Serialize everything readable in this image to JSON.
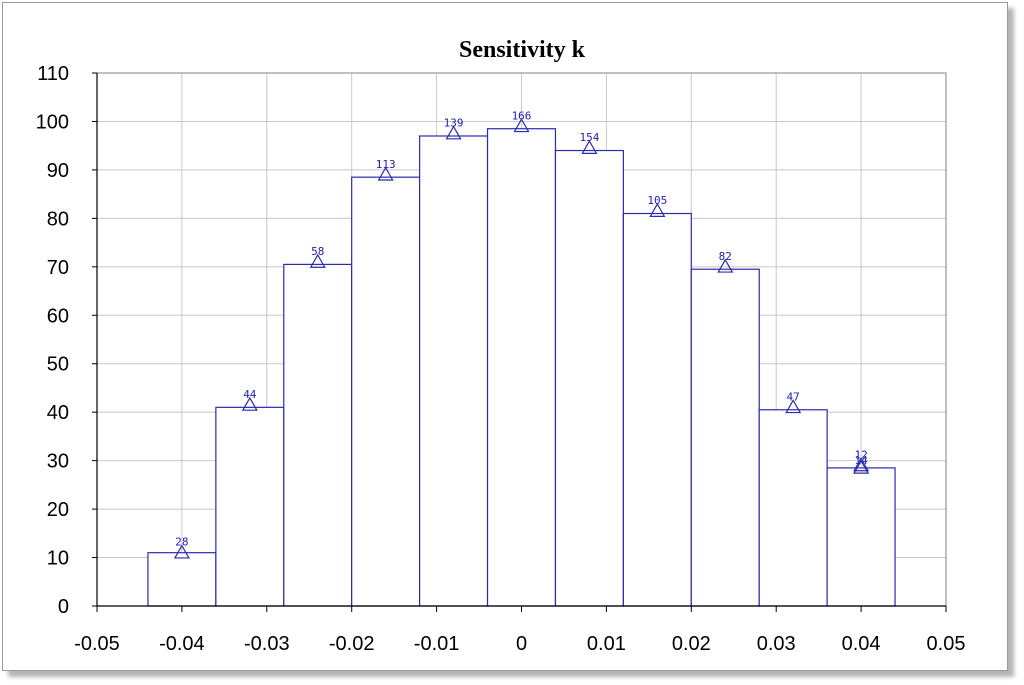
{
  "chart_data": {
    "type": "bar",
    "title": "Sensitivity k",
    "xlabel": "",
    "ylabel": "",
    "xlim": [
      -0.05,
      0.05
    ],
    "ylim": [
      0,
      110
    ],
    "x_ticks": [
      "-0.05",
      "-0.04",
      "-0.03",
      "-0.02",
      "-0.01",
      "0",
      "0.01",
      "0.02",
      "0.03",
      "0.04",
      "0.05"
    ],
    "y_ticks": [
      "0",
      "10",
      "20",
      "30",
      "40",
      "50",
      "60",
      "70",
      "80",
      "90",
      "100",
      "110"
    ],
    "grid": true,
    "bar_color": "#2b2bb0",
    "bin_width": 0.008,
    "bins": [
      {
        "center": -0.04,
        "value": 11
      },
      {
        "center": -0.032,
        "value": 41
      },
      {
        "center": -0.024,
        "value": 70.5
      },
      {
        "center": -0.016,
        "value": 88.5
      },
      {
        "center": -0.008,
        "value": 97
      },
      {
        "center": 0.0,
        "value": 98.5
      },
      {
        "center": 0.008,
        "value": 94
      },
      {
        "center": 0.016,
        "value": 81
      },
      {
        "center": 0.024,
        "value": 69.5
      },
      {
        "center": 0.032,
        "value": 40.5
      },
      {
        "center": 0.04,
        "value": 28.5
      }
    ],
    "markers": [
      {
        "x": -0.04,
        "y": 11,
        "label": "28"
      },
      {
        "x": -0.032,
        "y": 41.5,
        "label": "44"
      },
      {
        "x": -0.024,
        "y": 71,
        "label": "58"
      },
      {
        "x": -0.016,
        "y": 89,
        "label": "113"
      },
      {
        "x": -0.008,
        "y": 97.5,
        "label": "139"
      },
      {
        "x": 0.0,
        "y": 99,
        "label": "166"
      },
      {
        "x": 0.008,
        "y": 94.5,
        "label": "154"
      },
      {
        "x": 0.016,
        "y": 81.5,
        "label": "105"
      },
      {
        "x": 0.024,
        "y": 70,
        "label": "82"
      },
      {
        "x": 0.032,
        "y": 41,
        "label": "47"
      },
      {
        "x": 0.04,
        "y": 29,
        "label": "12"
      },
      {
        "x": 0.04,
        "y": 28.5,
        "label": "14"
      }
    ]
  }
}
